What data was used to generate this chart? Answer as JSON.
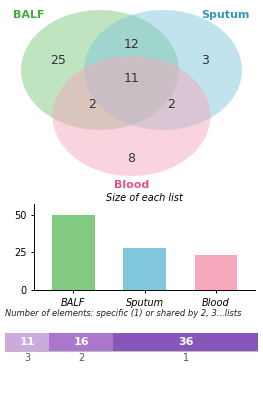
{
  "venn": {
    "BALF_only": 25,
    "Sputum_only": 3,
    "Blood_only": 8,
    "BALF_Sputum": 12,
    "BALF_Blood": 2,
    "Sputum_Blood": 2,
    "All_three": 11,
    "BALF_color": "#82c982",
    "Sputum_color": "#82c8dc",
    "Blood_color": "#f5a8be",
    "BALF_label_color": "#44aa44",
    "Sputum_label_color": "#3399bb",
    "Blood_label_color": "#dd5588"
  },
  "bar": {
    "categories": [
      "BALF",
      "Sputum",
      "Blood"
    ],
    "values": [
      50,
      28,
      23
    ],
    "colors": [
      "#82c982",
      "#82c8dc",
      "#f5a8be"
    ],
    "title": "Size of each list",
    "yticks": [
      0,
      25,
      50
    ]
  },
  "stacked": {
    "segments": [
      11,
      16,
      36
    ],
    "labels": [
      "11",
      "16",
      "36"
    ],
    "colors": [
      "#ccaadd",
      "#aa77cc",
      "#8855bb"
    ],
    "bottom_labels": [
      "3",
      "2",
      "1"
    ],
    "title": "Number of elements: specific (1) or shared by 2, 3...lists"
  }
}
